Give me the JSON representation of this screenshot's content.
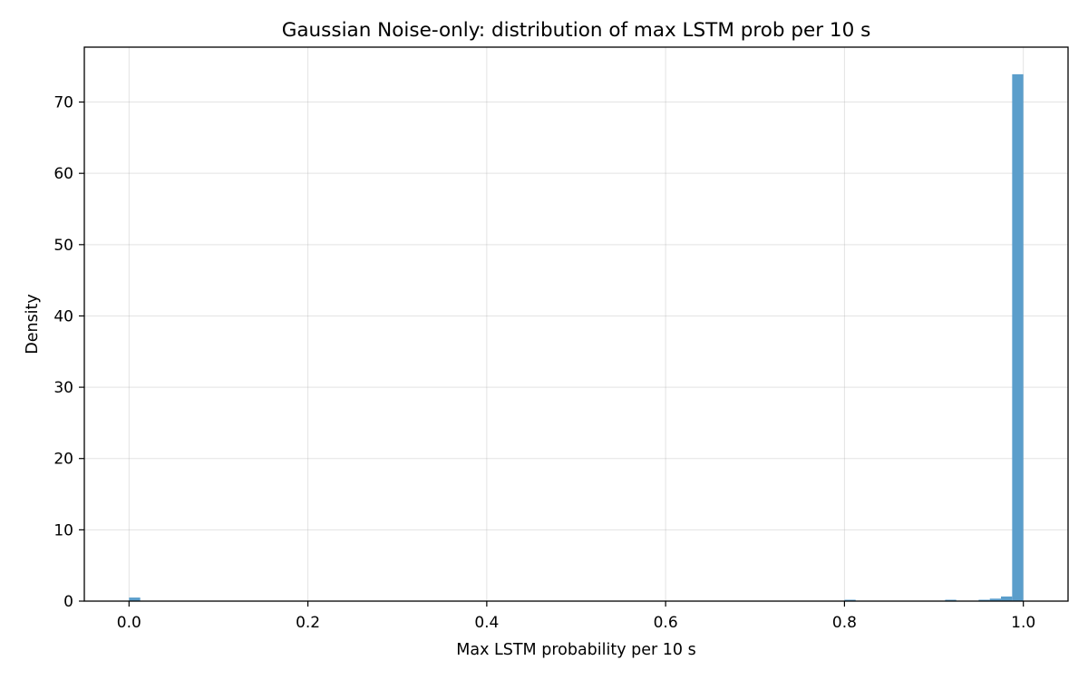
{
  "chart_data": {
    "type": "bar",
    "title": "Gaussian Noise-only: distribution of max LSTM prob per 10 s",
    "xlabel": "Max LSTM probability per 10 s",
    "ylabel": "Density",
    "xlim": [
      -0.05,
      1.05
    ],
    "ylim": [
      0,
      77.7
    ],
    "xticks": [
      "0.0",
      "0.2",
      "0.4",
      "0.6",
      "0.8",
      "1.0"
    ],
    "yticks": [
      "0",
      "10",
      "20",
      "30",
      "40",
      "50",
      "60",
      "70"
    ],
    "bin_width": 0.0125,
    "grid": true,
    "color": "#5b9ecb",
    "bins": [
      {
        "x0": 0.0,
        "value": 0.5
      },
      {
        "x0": 0.8,
        "value": 0.15
      },
      {
        "x0": 0.9125,
        "value": 0.1
      },
      {
        "x0": 0.95,
        "value": 0.15
      },
      {
        "x0": 0.9625,
        "value": 0.35
      },
      {
        "x0": 0.975,
        "value": 0.65
      },
      {
        "x0": 0.9875,
        "value": 73.9
      }
    ]
  }
}
